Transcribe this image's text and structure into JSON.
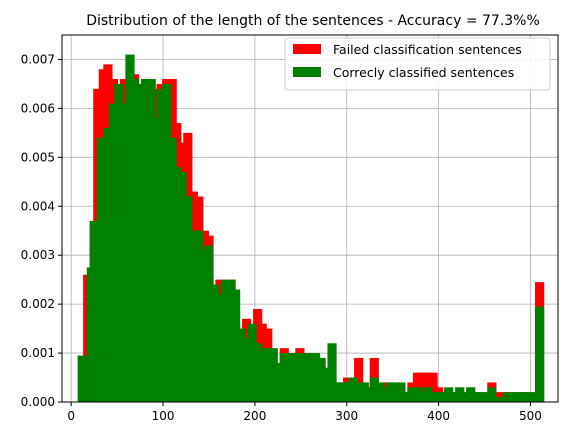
{
  "chart_data": {
    "type": "bar",
    "title": "Distribution of the length of the sentences - Accuracy = 77.3%%",
    "xlabel": "",
    "ylabel": "",
    "xlim": [
      -10,
      530
    ],
    "ylim": [
      0,
      0.0075
    ],
    "xticks": [
      0,
      100,
      200,
      300,
      400,
      500
    ],
    "xtick_labels": [
      "0",
      "100",
      "200",
      "300",
      "400",
      "500"
    ],
    "yticks": [
      0,
      0.001,
      0.002,
      0.003,
      0.004,
      0.005,
      0.006,
      0.007
    ],
    "ytick_labels": [
      "0.000",
      "0.001",
      "0.002",
      "0.003",
      "0.004",
      "0.005",
      "0.006",
      "0.007"
    ],
    "grid": true,
    "legend_position": "top-right",
    "bin_width": 10,
    "series": [
      {
        "name": "Failed classification sentences",
        "color": "#ff0000",
        "bins": [
          [
            13,
            0.0026
          ],
          [
            24,
            0.0064
          ],
          [
            30,
            0.0068
          ],
          [
            35,
            0.0069
          ],
          [
            41,
            0.0066
          ],
          [
            47,
            0.0064
          ],
          [
            53,
            0.0066
          ],
          [
            59,
            0.0066
          ],
          [
            64,
            0.0067
          ],
          [
            70,
            0.0065
          ],
          [
            76,
            0.0066
          ],
          [
            82,
            0.0066
          ],
          [
            88,
            0.0064
          ],
          [
            93,
            0.0065
          ],
          [
            99,
            0.0066
          ],
          [
            105,
            0.0066
          ],
          [
            110,
            0.0057
          ],
          [
            116,
            0.0053
          ],
          [
            122,
            0.0055
          ],
          [
            128,
            0.0043
          ],
          [
            134,
            0.0042
          ],
          [
            140,
            0.0035
          ],
          [
            145,
            0.0034
          ],
          [
            151,
            0.0024
          ],
          [
            157,
            0.0025
          ],
          [
            163,
            0.0021
          ],
          [
            169,
            0.0025
          ],
          [
            174,
            0.0016
          ],
          [
            180,
            0.0012
          ],
          [
            186,
            0.0017
          ],
          [
            192,
            0.0013
          ],
          [
            198,
            0.0019
          ],
          [
            203,
            0.0016
          ],
          [
            209,
            0.0015
          ],
          [
            215,
            0.0008
          ],
          [
            221,
            0.0006
          ],
          [
            227,
            0.0011
          ],
          [
            232,
            0.0005
          ],
          [
            238,
            0.0005
          ],
          [
            244,
            0.0011
          ],
          [
            250,
            0.0007
          ],
          [
            256,
            0.0005
          ],
          [
            261,
            0.0005
          ],
          [
            267,
            0.0009
          ],
          [
            273,
            0.0002
          ],
          [
            279,
            0.0004
          ],
          [
            285,
            0.0004
          ],
          [
            290,
            0.0003
          ],
          [
            296,
            0.0005
          ],
          [
            302,
            0.0002
          ],
          [
            308,
            0.0009
          ],
          [
            314,
            0.0004
          ],
          [
            320,
            0.0003
          ],
          [
            325,
            0.0009
          ],
          [
            331,
            0.0002
          ],
          [
            337,
            0.0004
          ],
          [
            343,
            0.0004
          ],
          [
            348,
            0.0003
          ],
          [
            354,
            0.0003
          ],
          [
            360,
            0.0002
          ],
          [
            366,
            0.0004
          ],
          [
            372,
            0.0006
          ],
          [
            377,
            0.0006
          ],
          [
            383,
            0.0006
          ],
          [
            389,
            0.0006
          ],
          [
            395,
            0.0003
          ],
          [
            401,
            0.0002
          ],
          [
            406,
            0.0002
          ],
          [
            412,
            0.0002
          ],
          [
            418,
            0.0002
          ],
          [
            424,
            0.0002
          ],
          [
            430,
            0.0002
          ],
          [
            435,
            0.0002
          ],
          [
            441,
            0.0002
          ],
          [
            447,
            0.0002
          ],
          [
            453,
            0.0004
          ],
          [
            458,
            0.0002
          ],
          [
            464,
            0.0002
          ],
          [
            470,
            0.0002
          ],
          [
            476,
            0.0002
          ],
          [
            482,
            0.0002
          ],
          [
            487,
            0.0002
          ],
          [
            493,
            0.0002
          ],
          [
            499,
            0.0002
          ],
          [
            505,
            0.00245
          ]
        ]
      },
      {
        "name": "Correcly classified sentences",
        "color": "#008000",
        "bins": [
          [
            7,
            0.00095
          ],
          [
            17,
            0.00275
          ],
          [
            20,
            0.0037
          ],
          [
            28,
            0.0054
          ],
          [
            35,
            0.0056
          ],
          [
            41,
            0.0061
          ],
          [
            47,
            0.0065
          ],
          [
            53,
            0.0061
          ],
          [
            59,
            0.0071
          ],
          [
            64,
            0.0066
          ],
          [
            70,
            0.0065
          ],
          [
            76,
            0.0066
          ],
          [
            82,
            0.0066
          ],
          [
            88,
            0.0058
          ],
          [
            93,
            0.0064
          ],
          [
            99,
            0.0065
          ],
          [
            105,
            0.0054
          ],
          [
            110,
            0.0048
          ],
          [
            116,
            0.0047
          ],
          [
            122,
            0.0042
          ],
          [
            128,
            0.0035
          ],
          [
            134,
            0.0035
          ],
          [
            140,
            0.0031
          ],
          [
            145,
            0.0032
          ],
          [
            151,
            0.0024
          ],
          [
            157,
            0.0022
          ],
          [
            163,
            0.0025
          ],
          [
            169,
            0.0025
          ],
          [
            174,
            0.0023
          ],
          [
            180,
            0.0015
          ],
          [
            186,
            0.0013
          ],
          [
            192,
            0.0016
          ],
          [
            198,
            0.0012
          ],
          [
            203,
            0.0011
          ],
          [
            209,
            0.0011
          ],
          [
            215,
            0.0011
          ],
          [
            221,
            0.0008
          ],
          [
            227,
            0.001
          ],
          [
            232,
            0.001
          ],
          [
            238,
            0.001
          ],
          [
            244,
            0.001
          ],
          [
            250,
            0.001
          ],
          [
            256,
            0.001
          ],
          [
            261,
            0.001
          ],
          [
            267,
            0.0009
          ],
          [
            273,
            0.0007
          ],
          [
            279,
            0.0012
          ],
          [
            285,
            0.0004
          ],
          [
            290,
            0.0004
          ],
          [
            296,
            0.0004
          ],
          [
            302,
            0.0005
          ],
          [
            308,
            0.0004
          ],
          [
            314,
            0.0004
          ],
          [
            320,
            0.0003
          ],
          [
            325,
            0.0005
          ],
          [
            331,
            0.0004
          ],
          [
            337,
            0.0003
          ],
          [
            343,
            0.0004
          ],
          [
            348,
            0.0004
          ],
          [
            354,
            0.0004
          ],
          [
            360,
            0.0002
          ],
          [
            366,
            0.0003
          ],
          [
            372,
            0.0003
          ],
          [
            377,
            0.0002
          ],
          [
            383,
            0.0003
          ],
          [
            389,
            0.0002
          ],
          [
            395,
            0.0002
          ],
          [
            401,
            0.0002
          ],
          [
            406,
            0.0003
          ],
          [
            412,
            0.0002
          ],
          [
            418,
            0.0003
          ],
          [
            424,
            0.0002
          ],
          [
            430,
            0.0003
          ],
          [
            435,
            0.0002
          ],
          [
            441,
            0.0002
          ],
          [
            447,
            0.0002
          ],
          [
            453,
            0.0003
          ],
          [
            458,
            0.0001
          ],
          [
            464,
            0.0001
          ],
          [
            470,
            0.0002
          ],
          [
            476,
            0.0002
          ],
          [
            482,
            0.0002
          ],
          [
            487,
            0.0002
          ],
          [
            493,
            0.0002
          ],
          [
            499,
            0.0002
          ],
          [
            505,
            0.00195
          ]
        ]
      }
    ]
  }
}
